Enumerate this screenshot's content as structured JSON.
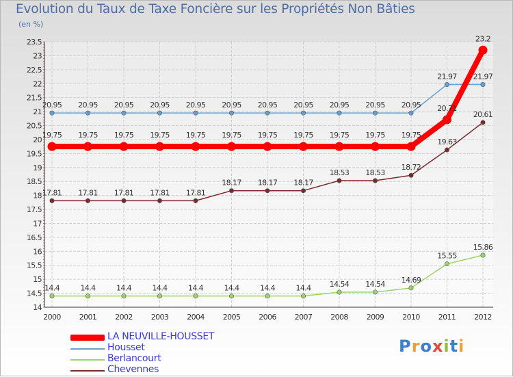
{
  "title": "Evolution du Taux de Taxe Foncière sur les Propriétés Non Bâties",
  "subtitle": "(en %)",
  "logo": {
    "text": "Proxiti",
    "colors": [
      "#3b7fcf",
      "#e8a13c",
      "#3b7fcf",
      "#e04b3b",
      "#8cbf3f",
      "#3b7fcf",
      "#e8a13c"
    ]
  },
  "chart_data": {
    "type": "line",
    "title": "Evolution du Taux de Taxe Foncière sur les Propriétés Non Bâties",
    "ylabel": "(en %)",
    "xlabel": "",
    "ylim": [
      14,
      23.5
    ],
    "yticks": [
      14,
      14.5,
      15,
      15.5,
      16,
      16.5,
      17,
      17.5,
      18,
      18.5,
      19,
      19.5,
      20,
      20.5,
      21,
      21.5,
      22,
      22.5,
      23,
      23.5
    ],
    "ytick_labels": [
      "14",
      "14.5",
      "15",
      "15.5",
      "16",
      "16.5",
      "17",
      "17.5",
      "18",
      "18.5",
      "19",
      "19.5",
      "20",
      "20.5",
      "21",
      "21.5",
      "22",
      "22.5",
      "23",
      "23.5"
    ],
    "categories": [
      "2000",
      "2001",
      "2002",
      "2003",
      "2004",
      "2005",
      "2006",
      "2007",
      "2008",
      "2009",
      "2010",
      "2011",
      "2012"
    ],
    "series": [
      {
        "name": "Housset",
        "color": "#6b9fcf",
        "values": [
          20.95,
          20.95,
          20.95,
          20.95,
          20.95,
          20.95,
          20.95,
          20.95,
          20.95,
          20.95,
          20.95,
          21.97,
          21.97
        ],
        "labels": [
          "20.95",
          "20.95",
          "20.95",
          "20.95",
          "20.95",
          "20.95",
          "20.95",
          "20.95",
          "20.95",
          "20.95",
          "20.95",
          "21.97",
          "21.97"
        ]
      },
      {
        "name": "Chevennes",
        "color": "#7a2a2a",
        "values": [
          17.81,
          17.81,
          17.81,
          17.81,
          17.81,
          18.17,
          18.17,
          18.17,
          18.53,
          18.53,
          18.72,
          19.63,
          20.61
        ],
        "labels": [
          "17.81",
          "17.81",
          "17.81",
          "17.81",
          "17.81",
          "18.17",
          "18.17",
          "18.17",
          "18.53",
          "18.53",
          "18.72",
          "19.63",
          "20.61"
        ]
      },
      {
        "name": "Berlancourt",
        "color": "#9fd36a",
        "values": [
          14.4,
          14.4,
          14.4,
          14.4,
          14.4,
          14.4,
          14.4,
          14.4,
          14.54,
          14.54,
          14.69,
          15.55,
          15.86
        ],
        "labels": [
          "14.4",
          "14.4",
          "14.4",
          "14.4",
          "14.4",
          "14.4",
          "14.4",
          "14.4",
          "14.54",
          "14.54",
          "14.69",
          "15.55",
          "15.86"
        ]
      },
      {
        "name": "LA NEUVILLE-HOUSSET",
        "color": "#ff0000",
        "values": [
          19.75,
          19.75,
          19.75,
          19.75,
          19.75,
          19.75,
          19.75,
          19.75,
          19.75,
          19.75,
          19.75,
          20.71,
          23.2
        ],
        "labels": [
          "19.75",
          "19.75",
          "19.75",
          "19.75",
          "19.75",
          "19.75",
          "19.75",
          "19.75",
          "19.75",
          "19.75",
          "19.75",
          "20.71",
          "23.2"
        ]
      }
    ],
    "legend": [
      "LA NEUVILLE-HOUSSET",
      "Housset",
      "Berlancourt",
      "Chevennes"
    ],
    "legend_position": "bottom-left",
    "grid": true
  }
}
